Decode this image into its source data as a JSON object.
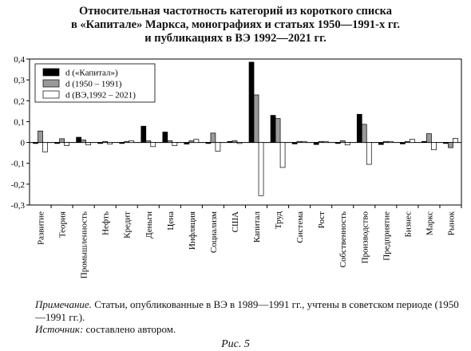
{
  "chart_data": {
    "type": "bar",
    "title_lines": [
      "Относительная частотность категорий из короткого списка",
      "в «Капитале» Маркса, монографиях и статьях 1950—1991-х гг.",
      "и публикациях в ВЭ 1992—2021 гг."
    ],
    "ylim": [
      -0.3,
      0.4
    ],
    "yticks": [
      -0.3,
      -0.2,
      -0.1,
      0,
      0.1,
      0.2,
      0.3,
      0.4
    ],
    "ytick_labels": [
      "-0,3",
      "-0,2",
      "-0,1",
      "0",
      "0,1",
      "0,2",
      "0,3",
      "0,4"
    ],
    "legend_position": "top-left",
    "categories": [
      "Развитие",
      "Теория",
      "Промышленность",
      "Нефть",
      "Кредит",
      "Деньги",
      "Цена",
      "Инфляция",
      "Социализм",
      "США",
      "Капитал",
      "Труд",
      "Система",
      "Рост",
      "Собственность",
      "Производство",
      "Предприятие",
      "Бизнес",
      "Маркс",
      "Рынок"
    ],
    "series": [
      {
        "name": "d («Капитал»)",
        "color": "#000000",
        "values": [
          -0.005,
          -0.005,
          0.025,
          -0.005,
          -0.005,
          0.078,
          0.05,
          -0.008,
          -0.005,
          0.005,
          0.385,
          0.13,
          -0.007,
          -0.01,
          -0.005,
          0.135,
          -0.01,
          -0.007,
          0.005,
          -0.005
        ]
      },
      {
        "name": "d (1950 – 1991)",
        "color": "#999999",
        "values": [
          0.055,
          0.018,
          0.012,
          0.005,
          0.005,
          0.008,
          0.008,
          0.008,
          0.045,
          0.008,
          0.228,
          0.115,
          0.005,
          0.005,
          0.008,
          0.087,
          0.005,
          0.005,
          0.042,
          -0.025
        ]
      },
      {
        "name": "d (ВЭ,1992 – 2021)",
        "color": "#ffffff",
        "values": [
          -0.045,
          -0.015,
          -0.012,
          -0.008,
          0.008,
          -0.02,
          -0.015,
          0.015,
          -0.042,
          -0.005,
          -0.255,
          -0.12,
          0.005,
          0.005,
          -0.012,
          -0.105,
          0.005,
          0.015,
          -0.035,
          0.02
        ]
      }
    ]
  },
  "note": {
    "label": "Примечание.",
    "text": " Статьи, опубликованные в ВЭ в 1989—1991 гг., учтены в советском периоде (1950—1991 гг.)."
  },
  "source": {
    "label": "Источник:",
    "text": " составлено автором."
  },
  "figure_label": "Рис. 5"
}
